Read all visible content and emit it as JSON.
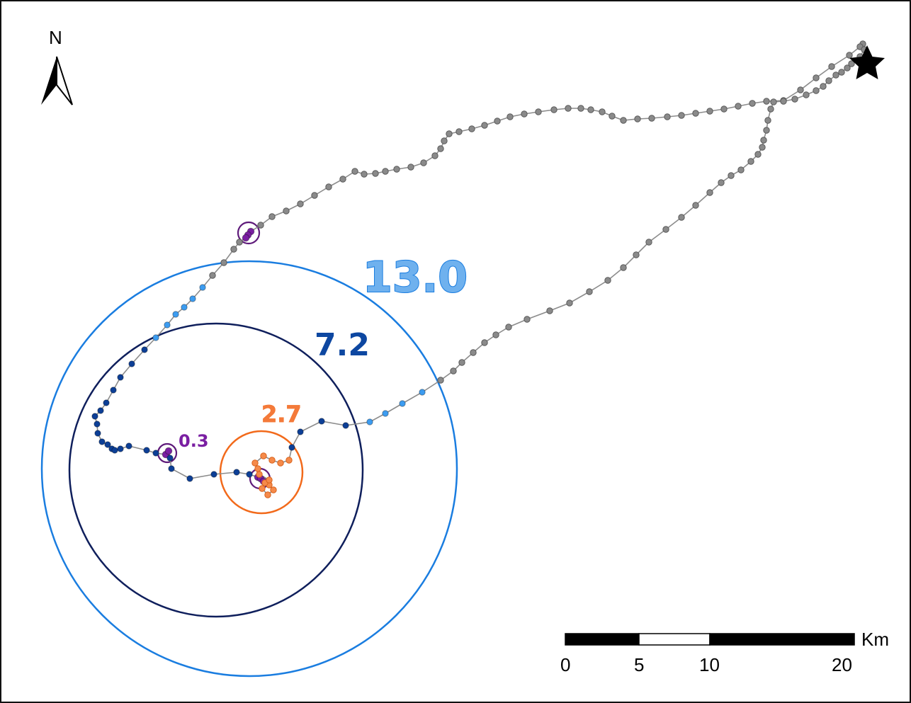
{
  "north_arrow": {
    "label": "N",
    "icon": "north-arrow-icon"
  },
  "start_marker": {
    "icon": "star-icon",
    "color": "#000000"
  },
  "radii": [
    {
      "label": "13.0",
      "color": "#1a7de0",
      "text_color": "#6fb1ee"
    },
    {
      "label": "7.2",
      "color": "#0f1f5c",
      "text_color": "#0d47a1"
    },
    {
      "label": "2.7",
      "color": "#f26a1b",
      "text_color": "#f47a3a"
    },
    {
      "label": "0.3",
      "color": "#5e1a7a",
      "text_color": "#7a1fa2"
    }
  ],
  "track_colors": {
    "line": "#8c8c8c",
    "gray": "#8a8a8a",
    "light_blue": "#3d9cf0",
    "dark_blue": "#0d3f96",
    "orange": "#f58a4a",
    "purple": "#7a1fa2"
  },
  "scale_bar": {
    "unit": "Km",
    "ticks": [
      "0",
      "5",
      "10",
      "20"
    ]
  }
}
